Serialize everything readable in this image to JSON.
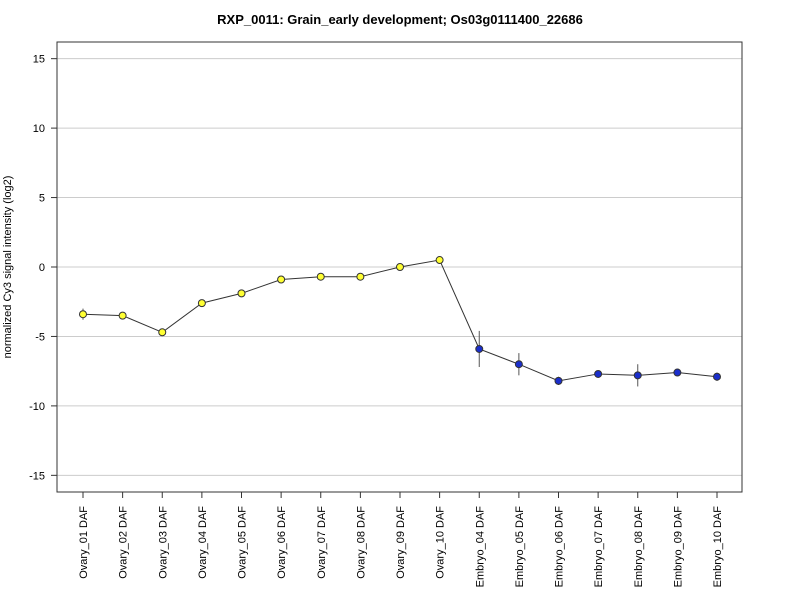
{
  "chart_data": {
    "type": "line",
    "title": "RXP_0011: Grain_early development; Os03g0111400_22686",
    "ylabel": "normalized Cy3 signal intensity (log2)",
    "xlabel": "",
    "ylim": [
      -16.2,
      16.2
    ],
    "yticks": [
      -15,
      -10,
      -5,
      0,
      5,
      10,
      15
    ],
    "grid": true,
    "categories": [
      "Ovary_01 DAF",
      "Ovary_02 DAF",
      "Ovary_03 DAF",
      "Ovary_04 DAF",
      "Ovary_05 DAF",
      "Ovary_06 DAF",
      "Ovary_07 DAF",
      "Ovary_08 DAF",
      "Ovary_09 DAF",
      "Ovary_10 DAF",
      "Embryo_04 DAF",
      "Embryo_05 DAF",
      "Embryo_06 DAF",
      "Embryo_07 DAF",
      "Embryo_08 DAF",
      "Embryo_09 DAF",
      "Embryo_10 DAF"
    ],
    "values": [
      -3.4,
      -3.5,
      -4.7,
      -2.6,
      -1.9,
      -0.9,
      -0.7,
      -0.7,
      0.0,
      0.5,
      -5.9,
      -7.0,
      -8.2,
      -7.7,
      -7.8,
      -7.6,
      -7.9
    ],
    "error": [
      0.4,
      0.15,
      0.2,
      0.25,
      0.2,
      0.15,
      0.25,
      0.15,
      0.15,
      0.2,
      1.3,
      0.8,
      0.3,
      0.2,
      0.8,
      0.2,
      0.3
    ],
    "point_colors": [
      "#ffff33",
      "#ffff33",
      "#ffff33",
      "#ffff33",
      "#ffff33",
      "#ffff33",
      "#ffff33",
      "#ffff33",
      "#ffff33",
      "#ffff33",
      "#1a2ecc",
      "#1a2ecc",
      "#1a2ecc",
      "#1a2ecc",
      "#1a2ecc",
      "#1a2ecc",
      "#1a2ecc"
    ],
    "line_color": "#333333",
    "grid_color": "#cccccc"
  }
}
